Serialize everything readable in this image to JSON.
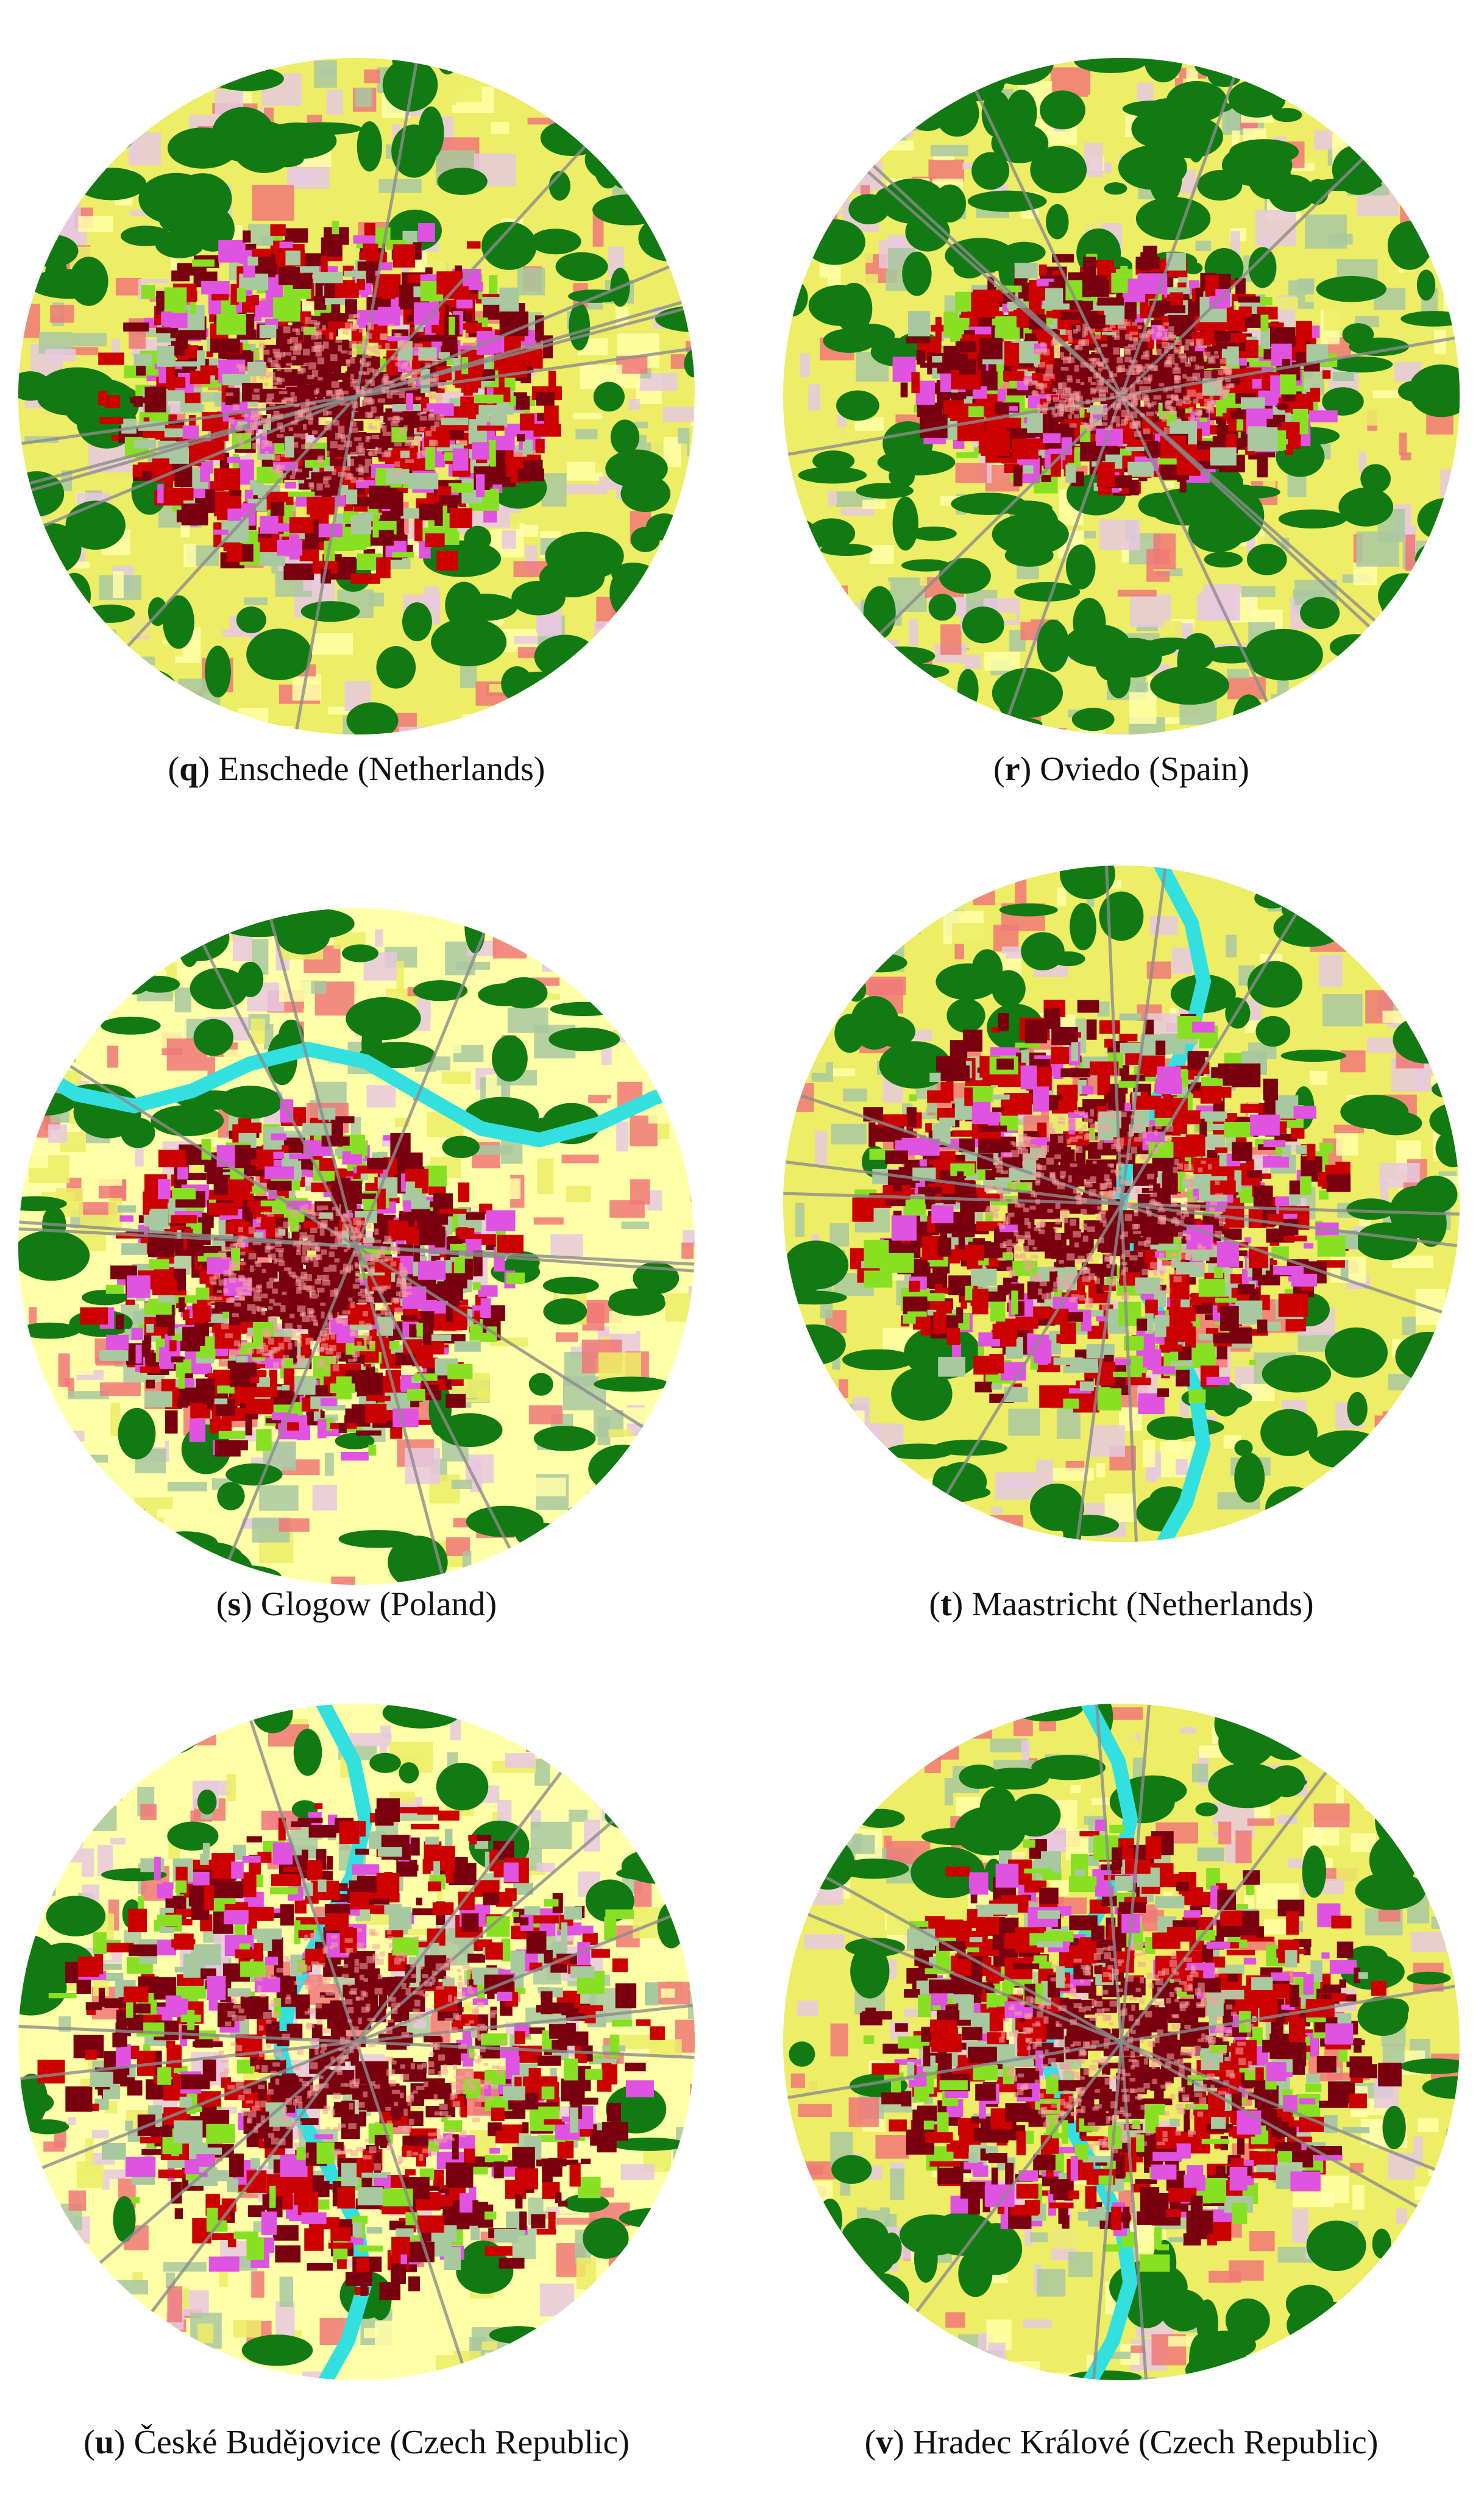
{
  "figure": {
    "panels": [
      {
        "id": "q",
        "letter": "q",
        "city": "Enschede (Netherlands)"
      },
      {
        "id": "r",
        "letter": "r",
        "city": "Oviedo (Spain)"
      },
      {
        "id": "s",
        "letter": "s",
        "city": "Glogow (Poland)"
      },
      {
        "id": "t",
        "letter": "t",
        "city": "Maastricht (Netherlands)"
      },
      {
        "id": "u",
        "letter": "u",
        "city": "České Budějovice (Czech Republic)"
      },
      {
        "id": "v",
        "letter": "v",
        "city": "Hradec Králové (Czech Republic)"
      }
    ]
  },
  "colors": {
    "agriculture": "#eded66",
    "pasture": "#ffffa8",
    "forest": "#127a12",
    "green_urban": "#88e022",
    "urban_fabric_dense": "#7a0010",
    "urban_fabric": "#cc0000",
    "industrial_commercial": "#e052e0",
    "water": "#33e0e0",
    "roads": "#8c8c8c",
    "construction": "#f07878",
    "sports_leisure": "#a8c8a0",
    "isolated_structures": "#e8c8e0",
    "mineral_extraction": "#7a4a2a"
  }
}
